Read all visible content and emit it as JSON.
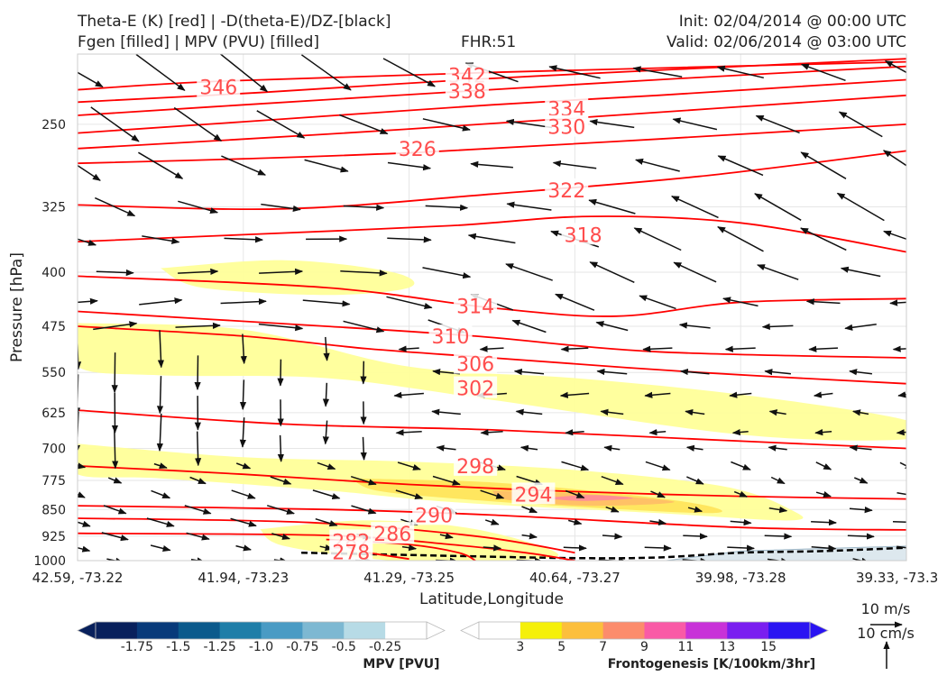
{
  "header": {
    "title_line1": "Theta-E (K) [red] | -D(theta-E)/DZ-[black]",
    "title_line2": "Fgen [filled] | MPV (PVU) [filled]",
    "fhr": "FHR:51",
    "init": "Init: 02/04/2014 @ 00:00 UTC",
    "valid": "Valid: 02/06/2014 @ 03:00 UTC"
  },
  "colors": {
    "theta_e_line": "#ff0000",
    "theta_e_label": "#ff4d4d",
    "vector": "#111111",
    "fgen_3": "#ffff99",
    "fgen_5": "#ffe55c",
    "fgen_7": "#ffbf66",
    "fgen_9": "#ff8c99",
    "mpv_neg": "#dde8ee"
  },
  "chart_data": {
    "type": "cross-section",
    "xlabel": "Latitude,Longitude",
    "ylabel": "Pressure [hPa]",
    "y_axis": {
      "scale": "log-pressure",
      "inverted": true,
      "range": [
        200,
        1000
      ],
      "ticks": [
        250,
        325,
        400,
        475,
        550,
        625,
        700,
        775,
        850,
        925,
        1000
      ]
    },
    "x_ticks": [
      "42.59, -73.22",
      "41.94, -73.23",
      "41.29, -73.25",
      "40.64, -73.27",
      "39.98, -73.28",
      "39.33, -73.3"
    ],
    "grid": true,
    "theta_e_contours": [
      {
        "level": 346,
        "label": "346",
        "points": [
          [
            0,
            224
          ],
          [
            0.17,
            218
          ],
          [
            0.5,
            212
          ],
          [
            1.0,
            205
          ]
        ]
      },
      {
        "level": 342,
        "label": "342",
        "points": [
          [
            0,
            233
          ],
          [
            0.22,
            226
          ],
          [
            0.47,
            217
          ],
          [
            0.72,
            210
          ],
          [
            1.0,
            203
          ]
        ]
      },
      {
        "level": 338,
        "label": "338",
        "points": [
          [
            0,
            243
          ],
          [
            0.2,
            235
          ],
          [
            0.47,
            225
          ],
          [
            0.73,
            216
          ],
          [
            1.0,
            208
          ]
        ]
      },
      {
        "level": 334,
        "label": "334",
        "points": [
          [
            0,
            257
          ],
          [
            0.2,
            248
          ],
          [
            0.5,
            235
          ],
          [
            0.7,
            228
          ],
          [
            1.0,
            217
          ]
        ]
      },
      {
        "level": 330,
        "label": "330",
        "points": [
          [
            0,
            270
          ],
          [
            0.3,
            258
          ],
          [
            0.6,
            245
          ],
          [
            1.0,
            228
          ]
        ]
      },
      {
        "level": 326,
        "label": "326",
        "points": [
          [
            0,
            283
          ],
          [
            0.2,
            279
          ],
          [
            0.42,
            273
          ],
          [
            0.7,
            262
          ],
          [
            1.0,
            250
          ]
        ]
      },
      {
        "level": 322,
        "label": "322",
        "points": [
          [
            0,
            323
          ],
          [
            0.25,
            327
          ],
          [
            0.5,
            312
          ],
          [
            0.75,
            295
          ],
          [
            1.0,
            272
          ]
        ]
      },
      {
        "level": 318,
        "label": "318",
        "points": [
          [
            0,
            363
          ],
          [
            0.2,
            355
          ],
          [
            0.45,
            345
          ],
          [
            0.62,
            335
          ],
          [
            0.8,
            342
          ],
          [
            1.0,
            375
          ]
        ]
      },
      {
        "level": 314,
        "label": "314",
        "points": [
          [
            0,
            405
          ],
          [
            0.3,
            420
          ],
          [
            0.5,
            448
          ],
          [
            0.65,
            460
          ],
          [
            0.8,
            440
          ],
          [
            1.0,
            435
          ]
        ]
      },
      {
        "level": 310,
        "label": "310",
        "points": [
          [
            0,
            453
          ],
          [
            0.3,
            475
          ],
          [
            0.48,
            490
          ],
          [
            0.7,
            515
          ],
          [
            1.0,
            525
          ]
        ]
      },
      {
        "level": 306,
        "label": "306",
        "points": [
          [
            0,
            475
          ],
          [
            0.2,
            490
          ],
          [
            0.35,
            510
          ],
          [
            0.5,
            525
          ],
          [
            0.75,
            550
          ],
          [
            1.0,
            570
          ]
        ]
      },
      {
        "level": 302,
        "label": "302",
        "points": [
          [
            0,
            620
          ],
          [
            0.25,
            648
          ],
          [
            0.5,
            660
          ],
          [
            0.75,
            680
          ],
          [
            1.0,
            700
          ]
        ]
      },
      {
        "level": 298,
        "label": "298",
        "points": [
          [
            0,
            740
          ],
          [
            0.2,
            760
          ],
          [
            0.4,
            785
          ],
          [
            0.6,
            803
          ],
          [
            0.8,
            815
          ],
          [
            1.0,
            822
          ]
        ]
      },
      {
        "level": 294,
        "label": "294",
        "points": [
          [
            0,
            840
          ],
          [
            0.3,
            850
          ],
          [
            0.5,
            865
          ],
          [
            0.8,
            900
          ],
          [
            1.0,
            907
          ]
        ]
      },
      {
        "level": 290,
        "label": "290",
        "points": [
          [
            0,
            874
          ],
          [
            0.28,
            886
          ],
          [
            0.48,
            925
          ],
          [
            0.6,
            975
          ]
        ]
      },
      {
        "level": 286,
        "label": "286",
        "points": [
          [
            0,
            917
          ],
          [
            0.3,
            923
          ],
          [
            0.45,
            950
          ],
          [
            0.54,
            975
          ],
          [
            0.6,
            1000
          ]
        ]
      },
      {
        "level": 282,
        "label": "282",
        "points": [
          [
            0.3,
            935
          ],
          [
            0.4,
            950
          ],
          [
            0.46,
            975
          ],
          [
            0.48,
            1000
          ]
        ]
      },
      {
        "level": 278,
        "label": "278",
        "points": [
          [
            0.35,
            975
          ],
          [
            0.4,
            995
          ]
        ]
      }
    ],
    "contour_labels": [
      {
        "level": 346,
        "label": "346",
        "x": 0.17,
        "p": 222
      },
      {
        "level": 342,
        "label": "342",
        "x": 0.47,
        "p": 214
      },
      {
        "level": 338,
        "label": "338",
        "x": 0.47,
        "p": 225
      },
      {
        "level": 334,
        "label": "334",
        "x": 0.59,
        "p": 238
      },
      {
        "level": 330,
        "label": "330",
        "x": 0.59,
        "p": 252
      },
      {
        "level": 326,
        "label": "326",
        "x": 0.41,
        "p": 270
      },
      {
        "level": 322,
        "label": "322",
        "x": 0.59,
        "p": 308
      },
      {
        "level": 318,
        "label": "318",
        "x": 0.61,
        "p": 355
      },
      {
        "level": 314,
        "label": "314",
        "x": 0.48,
        "p": 445
      },
      {
        "level": 310,
        "label": "310",
        "x": 0.45,
        "p": 490
      },
      {
        "level": 306,
        "label": "306",
        "x": 0.48,
        "p": 535
      },
      {
        "level": 302,
        "label": "302",
        "x": 0.48,
        "p": 578
      },
      {
        "level": 298,
        "label": "298",
        "x": 0.48,
        "p": 740
      },
      {
        "level": 294,
        "label": "294",
        "x": 0.55,
        "p": 810
      },
      {
        "level": 290,
        "label": "290",
        "x": 0.43,
        "p": 865
      },
      {
        "level": 286,
        "label": "286",
        "x": 0.38,
        "p": 918
      },
      {
        "level": 282,
        "label": "282",
        "x": 0.33,
        "p": 940
      },
      {
        "level": 278,
        "label": "278",
        "x": 0.33,
        "p": 973
      }
    ],
    "fgen_regions": [
      {
        "level": 3,
        "points": [
          [
            0.1,
            395
          ],
          [
            0.25,
            385
          ],
          [
            0.38,
            400
          ],
          [
            0.4,
            420
          ],
          [
            0.3,
            430
          ],
          [
            0.15,
            420
          ]
        ]
      },
      {
        "level": 3,
        "points": [
          [
            0,
            470
          ],
          [
            0.2,
            480
          ],
          [
            0.4,
            540
          ],
          [
            0.6,
            560
          ],
          [
            0.8,
            590
          ],
          [
            1.0,
            640
          ],
          [
            1.0,
            680
          ],
          [
            0.8,
            670
          ],
          [
            0.5,
            600
          ],
          [
            0.3,
            560
          ],
          [
            0.1,
            555
          ],
          [
            0,
            540
          ]
        ]
      },
      {
        "level": 3,
        "points": [
          [
            0,
            690
          ],
          [
            0.2,
            720
          ],
          [
            0.4,
            730
          ],
          [
            0.6,
            750
          ],
          [
            0.78,
            790
          ],
          [
            0.86,
            850
          ],
          [
            0.86,
            880
          ],
          [
            0.7,
            860
          ],
          [
            0.45,
            830
          ],
          [
            0.3,
            800
          ],
          [
            0.1,
            770
          ],
          [
            0,
            760
          ]
        ]
      },
      {
        "level": 3,
        "points": [
          [
            0.22,
            905
          ],
          [
            0.35,
            880
          ],
          [
            0.48,
            905
          ],
          [
            0.58,
            980
          ],
          [
            0.5,
            1000
          ],
          [
            0.38,
            1000
          ],
          [
            0.25,
            955
          ]
        ]
      },
      {
        "level": 5,
        "points": [
          [
            0.33,
            770
          ],
          [
            0.5,
            780
          ],
          [
            0.66,
            810
          ],
          [
            0.76,
            840
          ],
          [
            0.76,
            860
          ],
          [
            0.58,
            840
          ],
          [
            0.45,
            820
          ],
          [
            0.36,
            800
          ]
        ]
      },
      {
        "level": 7,
        "points": [
          [
            0.5,
            800
          ],
          [
            0.62,
            810
          ],
          [
            0.72,
            830
          ],
          [
            0.62,
            840
          ],
          [
            0.52,
            825
          ]
        ]
      },
      {
        "level": 9,
        "points": [
          [
            0.56,
            820
          ],
          [
            0.62,
            812
          ],
          [
            0.67,
            820
          ],
          [
            0.61,
            827
          ]
        ]
      }
    ],
    "mpv_regions": [
      {
        "level": -0.25,
        "points": [
          [
            0.71,
            1000
          ],
          [
            0.8,
            970
          ],
          [
            0.9,
            962
          ],
          [
            1.0,
            955
          ],
          [
            1.0,
            1000
          ]
        ]
      }
    ],
    "dashed_boundary": [
      [
        0.27,
        975
      ],
      [
        0.45,
        985
      ],
      [
        0.6,
        992
      ],
      [
        0.7,
        990
      ],
      [
        0.8,
        975
      ],
      [
        0.9,
        970
      ],
      [
        1.0,
        960
      ]
    ],
    "vector_grid": {
      "x": [
        0,
        0.1,
        0.2,
        0.3,
        0.4,
        0.5,
        0.6,
        0.7,
        0.8,
        0.9,
        1.0
      ],
      "p": [
        212,
        250,
        285,
        325,
        360,
        400,
        440,
        475,
        510,
        550,
        590,
        625,
        665,
        700,
        740,
        775,
        810,
        850,
        885,
        925,
        960,
        1000
      ],
      "units": "m/s"
    },
    "wind_reference": {
      "horizontal_label": "10 m/s",
      "vertical_label": "10 cm/s"
    },
    "colorbars": {
      "mpv": {
        "label": "MPV [PVU]",
        "tick_labels": [
          "-1.75",
          "-1.5",
          "-1.25",
          "-1.0",
          "-0.75",
          "-0.5",
          "-0.25"
        ],
        "colors": [
          "#08205c",
          "#083a7a",
          "#0b5a8c",
          "#1f7ea8",
          "#4a9bc4",
          "#7db8d2",
          "#b7dbe6",
          "#ffffff"
        ]
      },
      "fgen": {
        "label": "Frontogenesis [K/100km/3hr]",
        "tick_labels": [
          "3",
          "5",
          "7",
          "9",
          "11",
          "13",
          "15"
        ],
        "colors": [
          "#ffffff",
          "#f5f00a",
          "#fcbf3c",
          "#fc8c6c",
          "#f95aa6",
          "#c832d8",
          "#7a1ef0",
          "#2a14f2"
        ]
      }
    }
  }
}
